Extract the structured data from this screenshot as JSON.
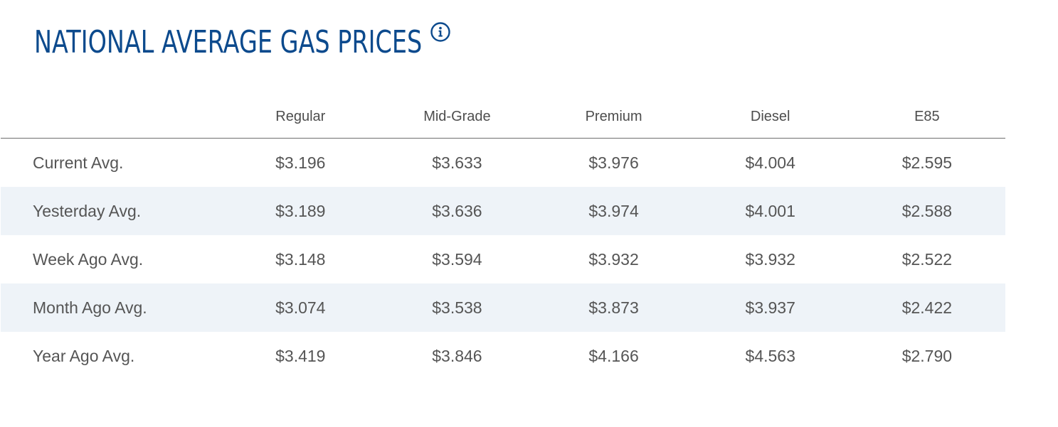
{
  "header": {
    "title": "NATIONAL AVERAGE GAS PRICES",
    "info_icon": "info-icon"
  },
  "table": {
    "columns": [
      "",
      "Regular",
      "Mid-Grade",
      "Premium",
      "Diesel",
      "E85"
    ],
    "rows": [
      {
        "label": "Current Avg.",
        "values": [
          "$3.196",
          "$3.633",
          "$3.976",
          "$4.004",
          "$2.595"
        ]
      },
      {
        "label": "Yesterday Avg.",
        "values": [
          "$3.189",
          "$3.636",
          "$3.974",
          "$4.001",
          "$2.588"
        ]
      },
      {
        "label": "Week Ago Avg.",
        "values": [
          "$3.148",
          "$3.594",
          "$3.932",
          "$3.932",
          "$2.522"
        ]
      },
      {
        "label": "Month Ago Avg.",
        "values": [
          "$3.074",
          "$3.538",
          "$3.873",
          "$3.937",
          "$2.422"
        ]
      },
      {
        "label": "Year Ago Avg.",
        "values": [
          "$3.419",
          "$3.846",
          "$4.166",
          "$4.563",
          "$2.790"
        ]
      }
    ]
  },
  "colors": {
    "title": "#0c4a8d",
    "row_shade": "#eef3f8",
    "text": "#555555"
  }
}
